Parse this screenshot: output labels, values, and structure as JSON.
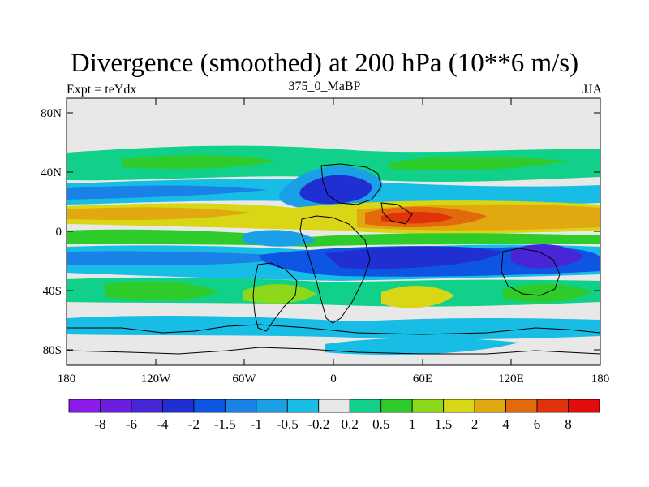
{
  "title": "Divergence (smoothed) at 200 hPa (10**6 m/s)",
  "left_label": "Expt = teYdx",
  "center_label": "375_0_MaBP",
  "right_label": "JJA",
  "chart_data": {
    "type": "heatmap",
    "title": "Divergence (smoothed) at 200 hPa (10**6 m/s)",
    "subtitle_left": "Expt = teYdx",
    "subtitle_center": "375_0_MaBP",
    "subtitle_right": "JJA",
    "x_range": [
      -180,
      180
    ],
    "y_range": [
      -90,
      90
    ],
    "x_ticks": [
      -180,
      -120,
      -60,
      0,
      60,
      120,
      180
    ],
    "x_tick_labels": [
      "180",
      "120W",
      "60W",
      "0",
      "60E",
      "120E",
      "180"
    ],
    "y_ticks": [
      80,
      40,
      0,
      -40,
      -80
    ],
    "y_tick_labels": [
      "80N",
      "40N",
      "0",
      "40S",
      "80S"
    ],
    "colorbar_levels": [
      "-8",
      "-6",
      "-4",
      "-2",
      "-1.5",
      "-1",
      "-0.5",
      "-0.2",
      "0.2",
      "0.5",
      "1",
      "1.5",
      "2",
      "4",
      "6",
      "8"
    ],
    "colorbar_colors": [
      "#8a1be8",
      "#6a1ee0",
      "#4826d8",
      "#1f2fd2",
      "#0d55e2",
      "#1a82e6",
      "#1aa0e6",
      "#17bde4",
      "#e8e8e8",
      "#11d08a",
      "#2ecc2a",
      "#8ed81a",
      "#d8d615",
      "#e2a80f",
      "#e3690d",
      "#e1320c",
      "#e30b0b"
    ],
    "bands": [
      {
        "latitude": "50N",
        "level": "0.5",
        "description": "weak divergence band across northern mid-latitudes"
      },
      {
        "latitude": "30N",
        "level": "-1",
        "description": "convergence band with strong core near 20E"
      },
      {
        "latitude": "10N",
        "level": "2",
        "description": "divergence band, strongest near 60E"
      },
      {
        "latitude": "0",
        "level": "0.5",
        "description": "mixed band along equator"
      },
      {
        "latitude": "20S",
        "level": "-1.5",
        "description": "strong convergence band, core near 100E-140E"
      },
      {
        "latitude": "40S",
        "level": "0.5",
        "description": "weak divergence patches"
      },
      {
        "latitude": "80S",
        "level": "-0.5",
        "description": "weak convergence near Antarctica"
      }
    ]
  }
}
